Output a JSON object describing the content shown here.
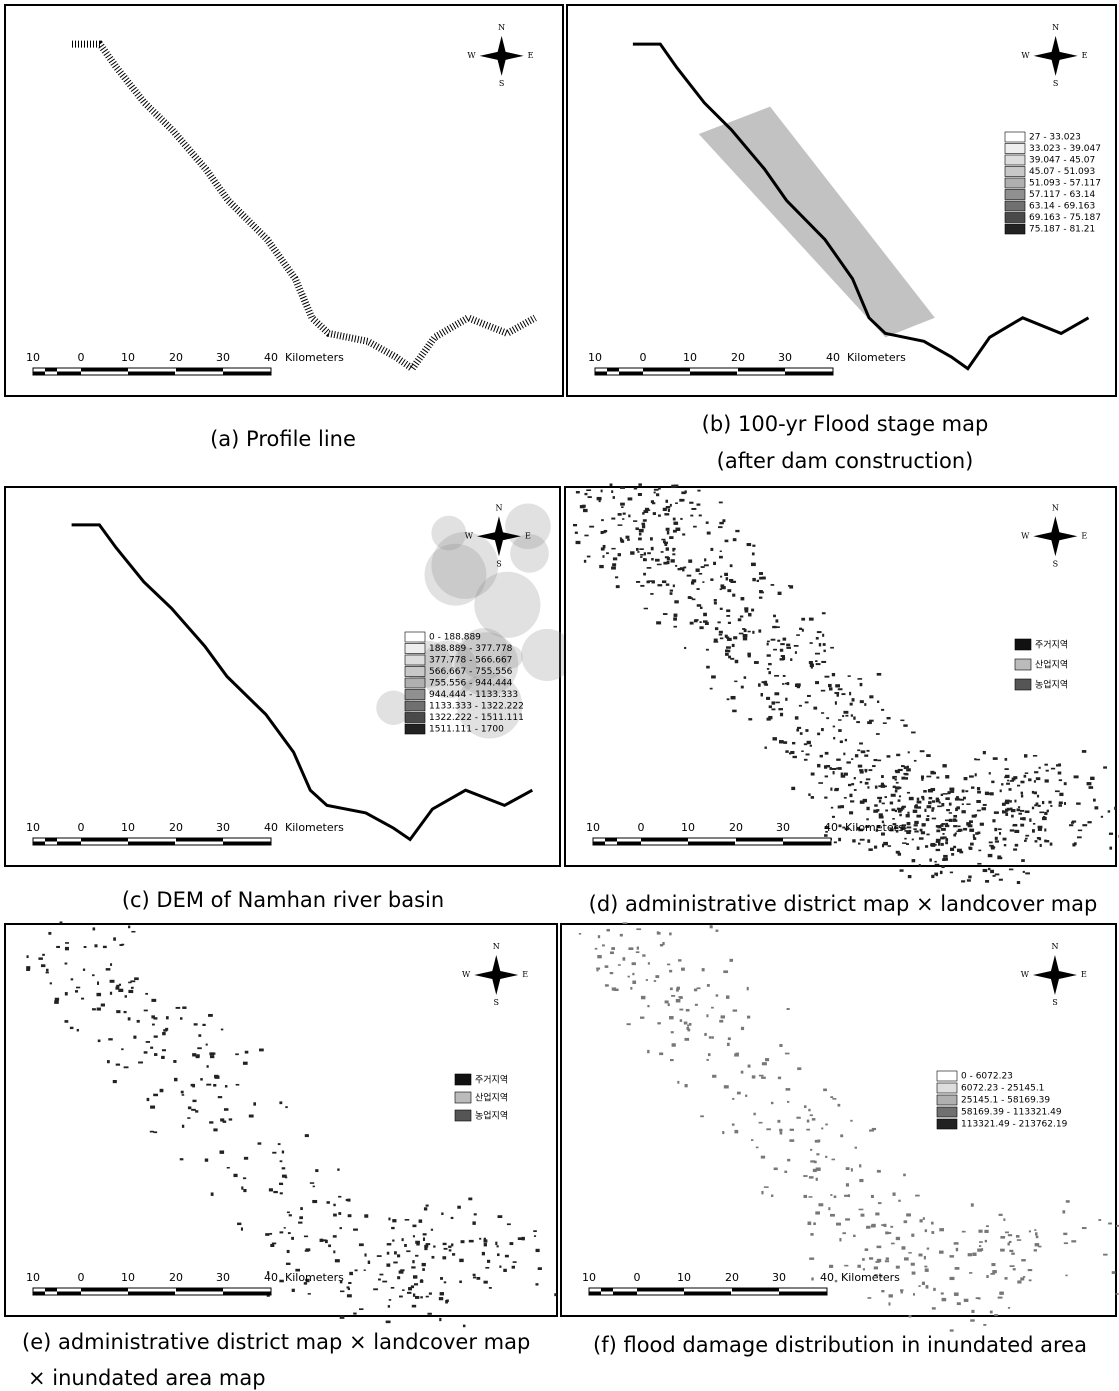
{
  "panels": [
    {
      "caption": [
        "(a)  Profile  line"
      ],
      "scale": {
        "labels": [
          "10",
          "0",
          "10",
          "20",
          "30",
          "40"
        ],
        "unit": "Kilometers"
      },
      "compass": {
        "n": "N",
        "w": "W",
        "e": "E",
        "s": "S"
      },
      "legend": []
    },
    {
      "caption": [
        "(b)  100-yr  Flood  stage  map",
        "(after  dam  construction)"
      ],
      "scale": {
        "labels": [
          "10",
          "0",
          "10",
          "20",
          "30",
          "40"
        ],
        "unit": "Kilometers"
      },
      "compass": {
        "n": "N",
        "w": "W",
        "e": "E",
        "s": "S"
      },
      "legend": [
        "27 - 33.023",
        "33.023 - 39.047",
        "39.047 - 45.07",
        "45.07 - 51.093",
        "51.093 - 57.117",
        "57.117 - 63.14",
        "63.14 - 69.163",
        "69.163 - 75.187",
        "75.187 - 81.21"
      ]
    },
    {
      "caption": [
        "(c)  DEM  of  Namhan  river  basin"
      ],
      "scale": {
        "labels": [
          "10",
          "0",
          "10",
          "20",
          "30",
          "40"
        ],
        "unit": "Kilometers"
      },
      "compass": {
        "n": "N",
        "w": "W",
        "e": "E",
        "s": "S"
      },
      "legend": [
        "0 - 188.889",
        "188.889 - 377.778",
        "377.778 - 566.667",
        "566.667 - 755.556",
        "755.556 - 944.444",
        "944.444 - 1133.333",
        "1133.333 - 1322.222",
        "1322.222 - 1511.111",
        "1511.111 - 1700"
      ]
    },
    {
      "caption": [
        "(d)  administrative  district  map  ×  landcover  map"
      ],
      "scale": {
        "labels": [
          "10",
          "0",
          "10",
          "20",
          "30",
          "40"
        ],
        "unit": "Kilometers"
      },
      "compass": {
        "n": "N",
        "w": "W",
        "e": "E",
        "s": "S"
      },
      "legend": [
        "주거지역",
        "산업지역",
        "농업지역"
      ]
    },
    {
      "caption": [
        "(e)  administrative  district  map  ×  landcover  map",
        "×  inundated  area  map"
      ],
      "scale": {
        "labels": [
          "10",
          "0",
          "10",
          "20",
          "30",
          "40"
        ],
        "unit": "Kilometers"
      },
      "compass": {
        "n": "N",
        "w": "W",
        "e": "E",
        "s": "S"
      },
      "legend": [
        "주거지역",
        "산업지역",
        "농업지역"
      ]
    },
    {
      "caption": [
        "(f)  flood  damage  distribution  in  inundated  area"
      ],
      "scale": {
        "labels": [
          "10",
          "0",
          "10",
          "20",
          "30",
          "40"
        ],
        "unit": "Kilometers"
      },
      "compass": {
        "n": "N",
        "w": "W",
        "e": "E",
        "s": "S"
      },
      "legend": [
        "0 - 6072.23",
        "6072.23 - 25145.1",
        "25145.1 - 58169.39",
        "58169.39 - 113321.49",
        "113321.49 - 213762.19"
      ]
    }
  ]
}
